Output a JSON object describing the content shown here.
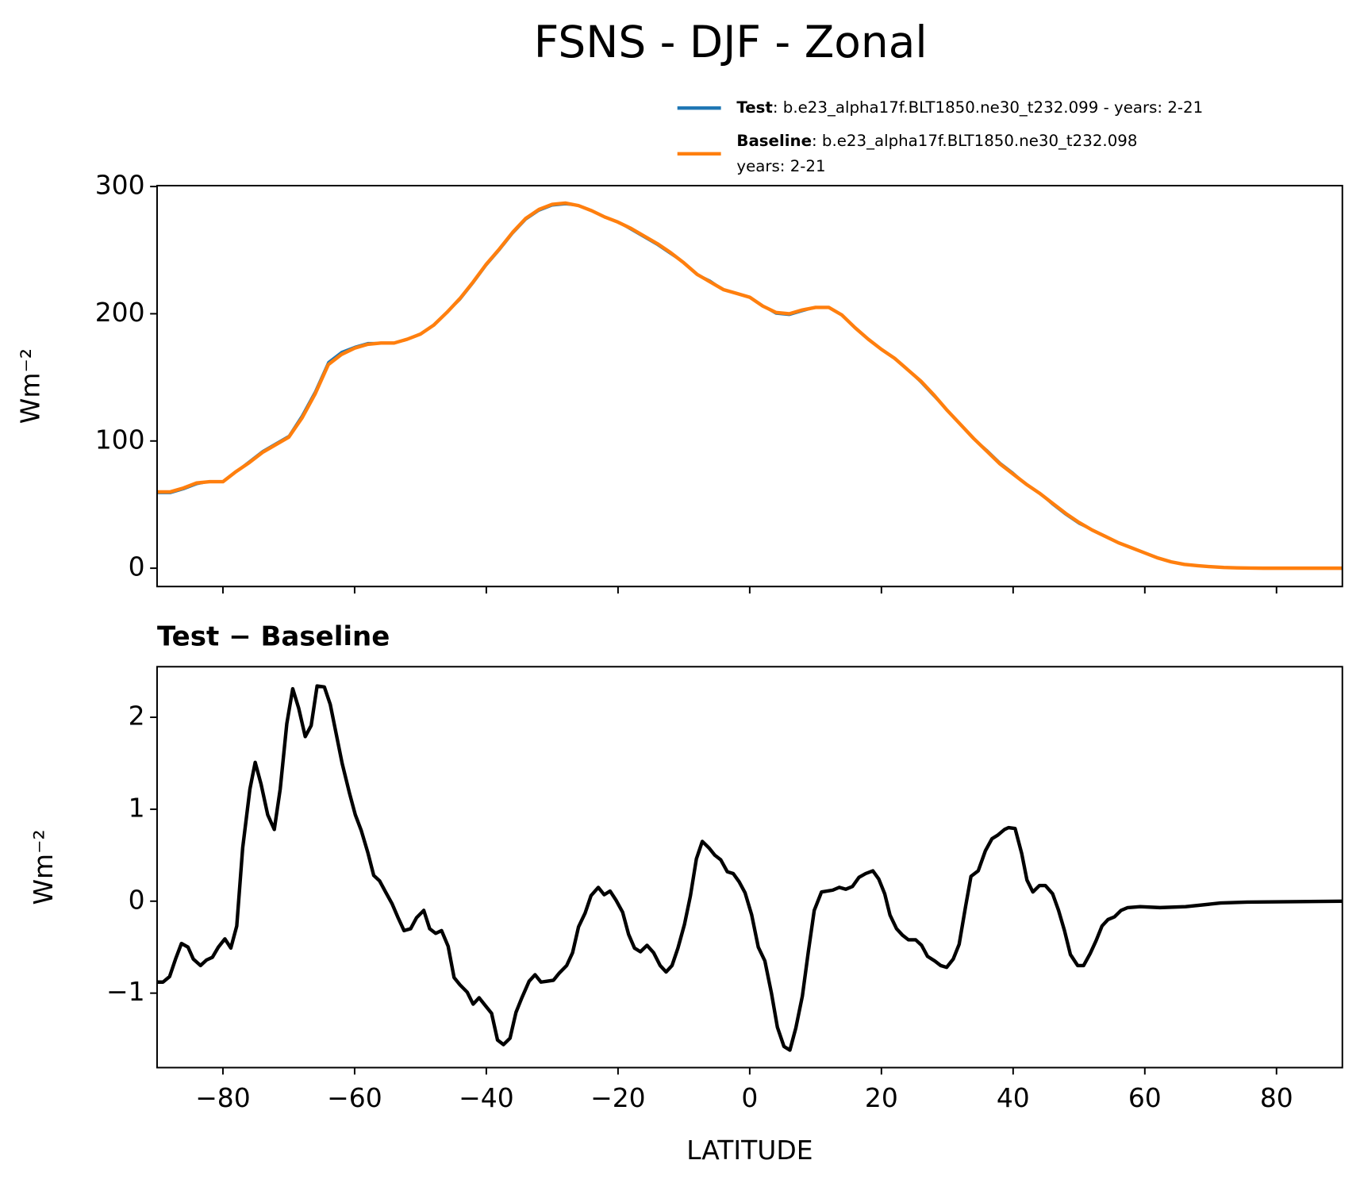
{
  "chart_data": [
    {
      "type": "line",
      "title": "FSNS - DJF - Zonal",
      "ylabel": "Wm⁻²",
      "x": [
        -90,
        -88,
        -86,
        -84,
        -82,
        -80,
        -78,
        -76,
        -74,
        -72,
        -70,
        -68,
        -66,
        -64,
        -62,
        -60,
        -58,
        -56,
        -54,
        -52,
        -50,
        -48,
        -46,
        -44,
        -42,
        -40,
        -38,
        -36,
        -34,
        -32,
        -30,
        -28,
        -26,
        -24,
        -22,
        -20,
        -18,
        -16,
        -14,
        -12,
        -10,
        -8,
        -6,
        -4,
        -2,
        0,
        2,
        4,
        6,
        8,
        10,
        12,
        14,
        16,
        18,
        20,
        22,
        24,
        26,
        28,
        30,
        32,
        34,
        36,
        38,
        40,
        42,
        44,
        46,
        48,
        50,
        52,
        54,
        56,
        58,
        60,
        62,
        64,
        66,
        68,
        70,
        72,
        74,
        76,
        78,
        80,
        82,
        84,
        86,
        88,
        90
      ],
      "series": [
        {
          "name": "Test",
          "description": [
            ": b.e23_alpha17f.BLT1850.ne30_t232.099 - years: 2-21"
          ],
          "color": "#1f77b4",
          "width": 2.5,
          "values": [
            59,
            59,
            62,
            66,
            68,
            68,
            76,
            84,
            92,
            98,
            104,
            120,
            139,
            162,
            170,
            174,
            177,
            177,
            177,
            180,
            184,
            191,
            201,
            211,
            224,
            238,
            250,
            263,
            274,
            281,
            285,
            286,
            285,
            281,
            276,
            272,
            266,
            260,
            254,
            247,
            240,
            231,
            226,
            219,
            216,
            213,
            206,
            200,
            199,
            202,
            205,
            205,
            199,
            189,
            180,
            172,
            165,
            156,
            146,
            135,
            124,
            113,
            102,
            93,
            83,
            75,
            66,
            59,
            50,
            42,
            35,
            30,
            25,
            20,
            16,
            12,
            8,
            5,
            3,
            2,
            1.2,
            0.6,
            0.3,
            0.1,
            0,
            0,
            0,
            0,
            0,
            0,
            0
          ]
        },
        {
          "name": "Baseline",
          "description": [
            ": b.e23_alpha17f.BLT1850.ne30_t232.098",
            "years: 2-21"
          ],
          "color": "#ff7f0e",
          "width": 4,
          "values": [
            60,
            60,
            63,
            67,
            68,
            68,
            76,
            83,
            91,
            97,
            103,
            118,
            137,
            160,
            168,
            173,
            176,
            177,
            177,
            180,
            184,
            191,
            201,
            212,
            225,
            239,
            251,
            264,
            275,
            282,
            286,
            287,
            285,
            281,
            276,
            272,
            267,
            261,
            255,
            248,
            240,
            231,
            225,
            219,
            216,
            213,
            206,
            201,
            200,
            203,
            205,
            205,
            199,
            189,
            180,
            172,
            165,
            156,
            147,
            136,
            124,
            113,
            102,
            92,
            82,
            74,
            66,
            59,
            51,
            43,
            36,
            30,
            25,
            20,
            16,
            12,
            8,
            5,
            3,
            2,
            1.2,
            0.6,
            0.3,
            0.1,
            0,
            0,
            0,
            0,
            0,
            0,
            0
          ]
        }
      ],
      "xlim": [
        -90,
        90
      ],
      "ylim": [
        -14.4,
        300.7
      ],
      "xticks": [
        -80,
        -60,
        -40,
        -20,
        0,
        20,
        40,
        60,
        80
      ],
      "xtick_labels": false,
      "yticks": [
        0,
        100,
        200,
        300
      ]
    },
    {
      "type": "line",
      "title": "Test − Baseline",
      "xlabel": "LATITUDE",
      "ylabel": "Wm⁻²",
      "color": "#000000",
      "width": 4,
      "x": [
        -90,
        -89.1,
        -88.1,
        -87.2,
        -86.3,
        -85.3,
        -84.5,
        -83.4,
        -82.5,
        -81.6,
        -80.7,
        -79.7,
        -78.8,
        -77.9,
        -77,
        -75.9,
        -75.1,
        -74.2,
        -73.2,
        -72.2,
        -71.3,
        -70.3,
        -69.4,
        -68.5,
        -67.5,
        -66.6,
        -65.7,
        -64.6,
        -63.7,
        -62.8,
        -61.9,
        -60.8,
        -59.9,
        -59,
        -58,
        -57.1,
        -56.2,
        -55.3,
        -54.3,
        -53.4,
        -52.5,
        -51.5,
        -50.6,
        -49.5,
        -48.6,
        -47.7,
        -46.8,
        -45.8,
        -44.9,
        -44,
        -42.9,
        -42,
        -41.1,
        -40.1,
        -39.2,
        -38.3,
        -37.4,
        -36.4,
        -35.5,
        -34.6,
        -33.5,
        -32.6,
        -31.7,
        -30.7,
        -29.8,
        -28.9,
        -27.8,
        -26.9,
        -26,
        -25,
        -24.1,
        -23,
        -22.1,
        -21.2,
        -20.3,
        -19.3,
        -18.4,
        -17.5,
        -16.6,
        -15.6,
        -14.6,
        -13.6,
        -12.7,
        -11.8,
        -10.9,
        -9.9,
        -9,
        -8.1,
        -7.2,
        -6.2,
        -5.3,
        -4.4,
        -3.4,
        -2.5,
        -1.6,
        -0.7,
        0.3,
        1.3,
        2.3,
        3.3,
        4.2,
        5.2,
        6.1,
        7,
        8,
        8.9,
        9.8,
        10.9,
        12.6,
        13.6,
        14.6,
        15.6,
        16.6,
        17.6,
        18.7,
        19.6,
        20.5,
        21.3,
        22.3,
        23.2,
        24.1,
        25.2,
        26.1,
        27,
        28.1,
        29,
        29.9,
        30.9,
        31.8,
        32.8,
        33.6,
        34.7,
        35.8,
        36.8,
        37.7,
        38.7,
        39.3,
        40.3,
        41.3,
        42.1,
        43,
        44,
        44.9,
        46,
        46.9,
        47.8,
        48.7,
        49.8,
        50.7,
        51.7,
        52.6,
        53.5,
        54.4,
        55.4,
        56.4,
        57.4,
        59.3,
        62.3,
        66.2,
        71.5,
        75.5,
        90
      ],
      "values": [
        -0.88,
        -0.88,
        -0.82,
        -0.63,
        -0.46,
        -0.5,
        -0.63,
        -0.7,
        -0.64,
        -0.61,
        -0.5,
        -0.41,
        -0.51,
        -0.27,
        0.58,
        1.22,
        1.51,
        1.27,
        0.94,
        0.78,
        1.22,
        1.93,
        2.31,
        2.1,
        1.79,
        1.91,
        2.34,
        2.33,
        2.14,
        1.82,
        1.5,
        1.18,
        0.94,
        0.77,
        0.53,
        0.28,
        0.22,
        0.1,
        -0.03,
        -0.18,
        -0.32,
        -0.3,
        -0.18,
        -0.1,
        -0.3,
        -0.35,
        -0.32,
        -0.49,
        -0.83,
        -0.91,
        -0.99,
        -1.12,
        -1.05,
        -1.14,
        -1.22,
        -1.51,
        -1.56,
        -1.49,
        -1.21,
        -1.05,
        -0.87,
        -0.8,
        -0.88,
        -0.87,
        -0.86,
        -0.78,
        -0.7,
        -0.56,
        -0.28,
        -0.13,
        0.06,
        0.15,
        0.07,
        0.11,
        0.01,
        -0.12,
        -0.36,
        -0.51,
        -0.55,
        -0.48,
        -0.56,
        -0.7,
        -0.77,
        -0.7,
        -0.51,
        -0.25,
        0.06,
        0.46,
        0.65,
        0.58,
        0.5,
        0.45,
        0.32,
        0.3,
        0.21,
        0.09,
        -0.15,
        -0.5,
        -0.65,
        -1.0,
        -1.37,
        -1.58,
        -1.62,
        -1.38,
        -1.03,
        -0.55,
        -0.1,
        0.1,
        0.12,
        0.15,
        0.13,
        0.16,
        0.26,
        0.3,
        0.33,
        0.24,
        0.08,
        -0.15,
        -0.3,
        -0.37,
        -0.42,
        -0.42,
        -0.48,
        -0.6,
        -0.65,
        -0.7,
        -0.72,
        -0.63,
        -0.47,
        -0.05,
        0.27,
        0.33,
        0.55,
        0.68,
        0.72,
        0.78,
        0.8,
        0.79,
        0.52,
        0.23,
        0.1,
        0.17,
        0.17,
        0.08,
        -0.1,
        -0.32,
        -0.58,
        -0.7,
        -0.7,
        -0.57,
        -0.43,
        -0.27,
        -0.2,
        -0.17,
        -0.1,
        -0.07,
        -0.06,
        -0.07,
        -0.06,
        -0.02,
        -0.01,
        0
      ],
      "xlim": [
        -90,
        90
      ],
      "ylim": [
        -1.81,
        2.55
      ],
      "xticks": [
        {
          "value": -80,
          "label": "−80"
        },
        {
          "value": -60,
          "label": "−60"
        },
        {
          "value": -40,
          "label": "−40"
        },
        {
          "value": -20,
          "label": "−20"
        },
        0,
        20,
        40,
        60,
        80
      ],
      "yticks": [
        {
          "value": -1,
          "label": "−1"
        },
        0,
        1,
        2
      ]
    }
  ]
}
